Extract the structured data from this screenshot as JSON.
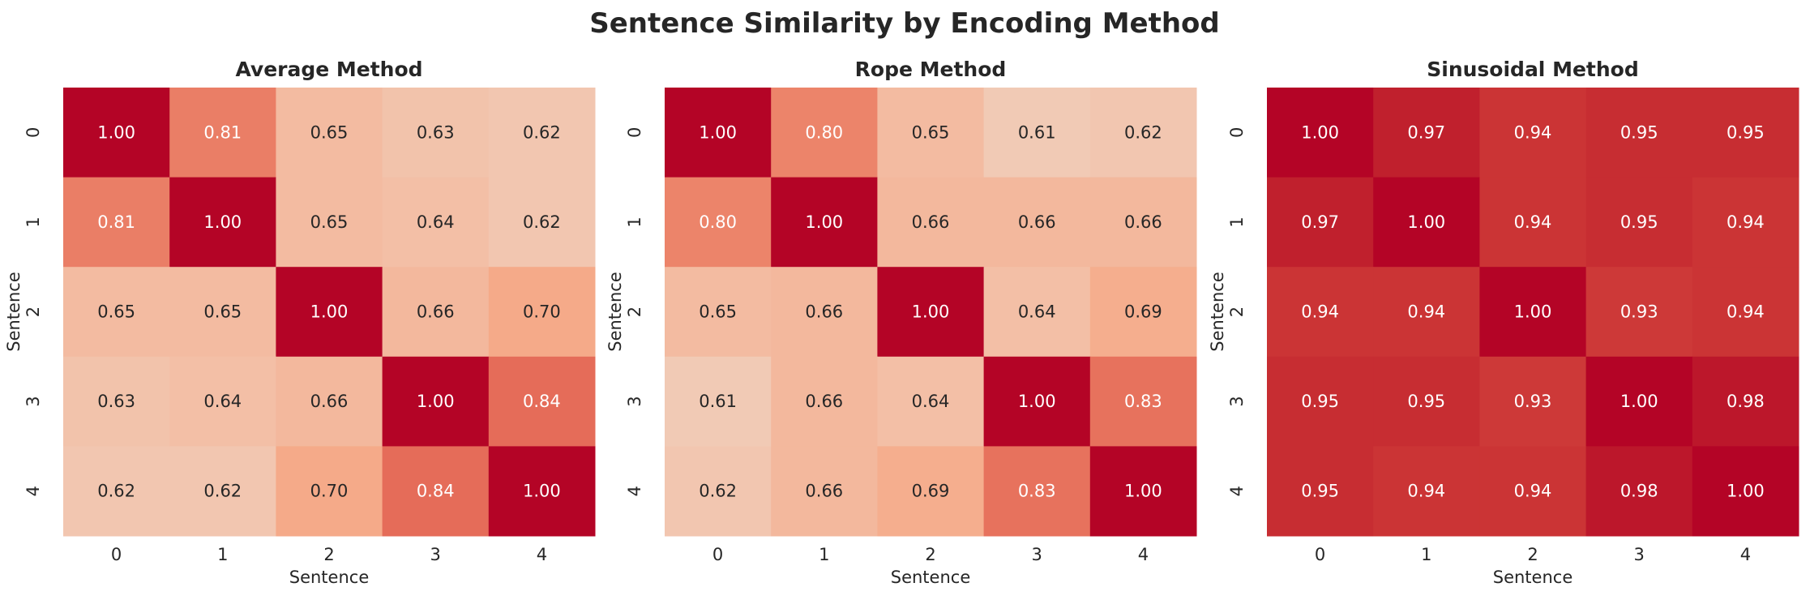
{
  "title": "Sentence Similarity by Encoding Method",
  "chart_data": [
    {
      "type": "heatmap",
      "title": "Average Method",
      "xlabel": "Sentence",
      "ylabel": "Sentence",
      "x_categories": [
        "0",
        "1",
        "2",
        "3",
        "4"
      ],
      "y_categories": [
        "0",
        "1",
        "2",
        "3",
        "4"
      ],
      "values": [
        [
          1.0,
          0.81,
          0.65,
          0.63,
          0.62
        ],
        [
          0.81,
          1.0,
          0.65,
          0.64,
          0.62
        ],
        [
          0.65,
          0.65,
          1.0,
          0.66,
          0.7
        ],
        [
          0.63,
          0.64,
          0.66,
          1.0,
          0.84
        ],
        [
          0.62,
          0.62,
          0.7,
          0.84,
          1.0
        ]
      ],
      "colorscale": "coolwarm",
      "colorbar": false
    },
    {
      "type": "heatmap",
      "title": "Rope Method",
      "xlabel": "Sentence",
      "ylabel": "Sentence",
      "x_categories": [
        "0",
        "1",
        "2",
        "3",
        "4"
      ],
      "y_categories": [
        "0",
        "1",
        "2",
        "3",
        "4"
      ],
      "values": [
        [
          1.0,
          0.8,
          0.65,
          0.61,
          0.62
        ],
        [
          0.8,
          1.0,
          0.66,
          0.66,
          0.66
        ],
        [
          0.65,
          0.66,
          1.0,
          0.64,
          0.69
        ],
        [
          0.61,
          0.66,
          0.64,
          1.0,
          0.83
        ],
        [
          0.62,
          0.66,
          0.69,
          0.83,
          1.0
        ]
      ],
      "colorscale": "coolwarm",
      "colorbar": false
    },
    {
      "type": "heatmap",
      "title": "Sinusoidal Method",
      "xlabel": "Sentence",
      "ylabel": "Sentence",
      "x_categories": [
        "0",
        "1",
        "2",
        "3",
        "4"
      ],
      "y_categories": [
        "0",
        "1",
        "2",
        "3",
        "4"
      ],
      "values": [
        [
          1.0,
          0.97,
          0.94,
          0.95,
          0.95
        ],
        [
          0.97,
          1.0,
          0.94,
          0.95,
          0.94
        ],
        [
          0.94,
          0.94,
          1.0,
          0.93,
          0.94
        ],
        [
          0.95,
          0.95,
          0.93,
          1.0,
          0.98
        ],
        [
          0.95,
          0.94,
          0.94,
          0.98,
          1.0
        ]
      ],
      "colorscale": "coolwarm",
      "colorbar": false
    }
  ]
}
